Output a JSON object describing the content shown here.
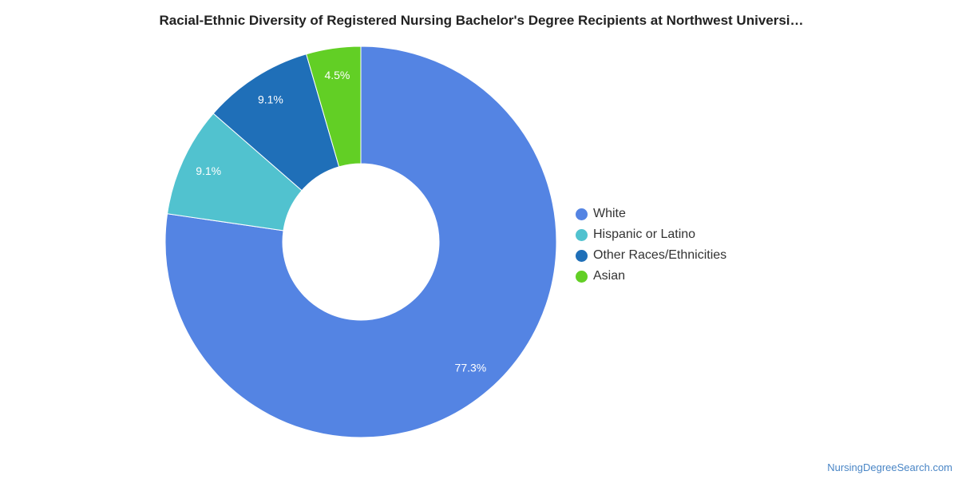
{
  "chart_data": {
    "type": "pie",
    "title": "Racial-Ethnic Diversity of Registered Nursing Bachelor's Degree Recipients at Northwest Universi…",
    "categories": [
      "White",
      "Hispanic or Latino",
      "Other Races/Ethnicities",
      "Asian"
    ],
    "values": [
      77.3,
      9.1,
      9.1,
      4.5
    ],
    "value_labels": [
      "77.3%",
      "9.1%",
      "9.1%",
      "4.5%"
    ],
    "colors": [
      "#5484e3",
      "#51c2cf",
      "#1f6fb8",
      "#62cf25"
    ],
    "donut": true,
    "legend_position": "right"
  },
  "source": "NursingDegreeSearch.com"
}
